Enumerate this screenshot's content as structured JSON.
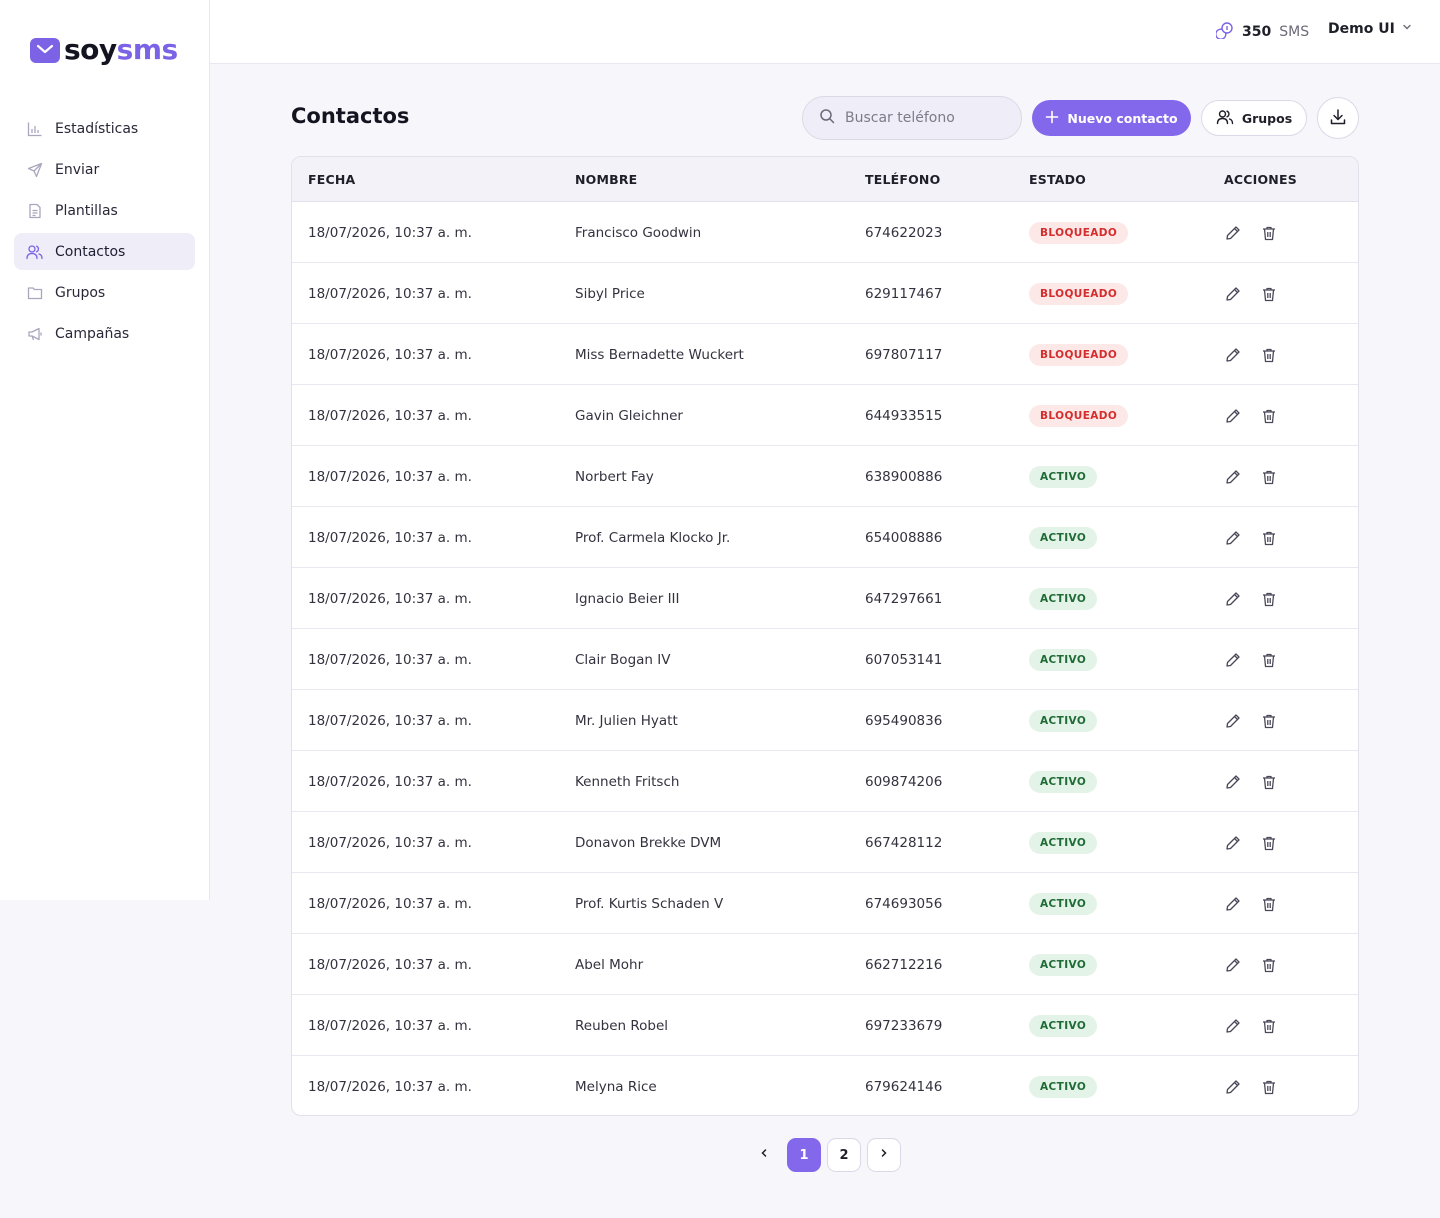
{
  "brand": {
    "name_part1": "soy",
    "name_part2": "sms",
    "accent": "#8468ec"
  },
  "topbar": {
    "credits_value": "350",
    "credits_unit": "SMS",
    "user_name": "Demo UI"
  },
  "sidebar": {
    "items": [
      {
        "label": "Estadísticas",
        "icon": "bar-chart-icon",
        "active": false
      },
      {
        "label": "Enviar",
        "icon": "send-icon",
        "active": false
      },
      {
        "label": "Plantillas",
        "icon": "document-icon",
        "active": false
      },
      {
        "label": "Contactos",
        "icon": "users-icon",
        "active": true
      },
      {
        "label": "Grupos",
        "icon": "folder-icon",
        "active": false
      },
      {
        "label": "Campañas",
        "icon": "megaphone-icon",
        "active": false
      }
    ]
  },
  "page": {
    "title": "Contactos",
    "search_placeholder": "Buscar teléfono",
    "new_contact_label": "Nuevo contacto",
    "groups_label": "Grupos"
  },
  "table": {
    "headers": [
      "FECHA",
      "NOMBRE",
      "TELÉFONO",
      "ESTADO",
      "ACCIONES"
    ],
    "rows": [
      {
        "fecha": "18/07/2026, 10:37 a. m.",
        "nombre": "Francisco Goodwin",
        "telefono": "674622023",
        "estado": "BLOQUEADO"
      },
      {
        "fecha": "18/07/2026, 10:37 a. m.",
        "nombre": "Sibyl Price",
        "telefono": "629117467",
        "estado": "BLOQUEADO"
      },
      {
        "fecha": "18/07/2026, 10:37 a. m.",
        "nombre": "Miss Bernadette Wuckert",
        "telefono": "697807117",
        "estado": "BLOQUEADO"
      },
      {
        "fecha": "18/07/2026, 10:37 a. m.",
        "nombre": "Gavin Gleichner",
        "telefono": "644933515",
        "estado": "BLOQUEADO"
      },
      {
        "fecha": "18/07/2026, 10:37 a. m.",
        "nombre": "Norbert Fay",
        "telefono": "638900886",
        "estado": "ACTIVO"
      },
      {
        "fecha": "18/07/2026, 10:37 a. m.",
        "nombre": "Prof. Carmela Klocko Jr.",
        "telefono": "654008886",
        "estado": "ACTIVO"
      },
      {
        "fecha": "18/07/2026, 10:37 a. m.",
        "nombre": "Ignacio Beier III",
        "telefono": "647297661",
        "estado": "ACTIVO"
      },
      {
        "fecha": "18/07/2026, 10:37 a. m.",
        "nombre": "Clair Bogan IV",
        "telefono": "607053141",
        "estado": "ACTIVO"
      },
      {
        "fecha": "18/07/2026, 10:37 a. m.",
        "nombre": "Mr. Julien Hyatt",
        "telefono": "695490836",
        "estado": "ACTIVO"
      },
      {
        "fecha": "18/07/2026, 10:37 a. m.",
        "nombre": "Kenneth Fritsch",
        "telefono": "609874206",
        "estado": "ACTIVO"
      },
      {
        "fecha": "18/07/2026, 10:37 a. m.",
        "nombre": "Donavon Brekke DVM",
        "telefono": "667428112",
        "estado": "ACTIVO"
      },
      {
        "fecha": "18/07/2026, 10:37 a. m.",
        "nombre": "Prof. Kurtis Schaden V",
        "telefono": "674693056",
        "estado": "ACTIVO"
      },
      {
        "fecha": "18/07/2026, 10:37 a. m.",
        "nombre": "Abel Mohr",
        "telefono": "662712216",
        "estado": "ACTIVO"
      },
      {
        "fecha": "18/07/2026, 10:37 a. m.",
        "nombre": "Reuben Robel",
        "telefono": "697233679",
        "estado": "ACTIVO"
      },
      {
        "fecha": "18/07/2026, 10:37 a. m.",
        "nombre": "Melyna Rice",
        "telefono": "679624146",
        "estado": "ACTIVO"
      }
    ]
  },
  "pagination": {
    "pages": [
      "1",
      "2"
    ],
    "current": "1"
  }
}
